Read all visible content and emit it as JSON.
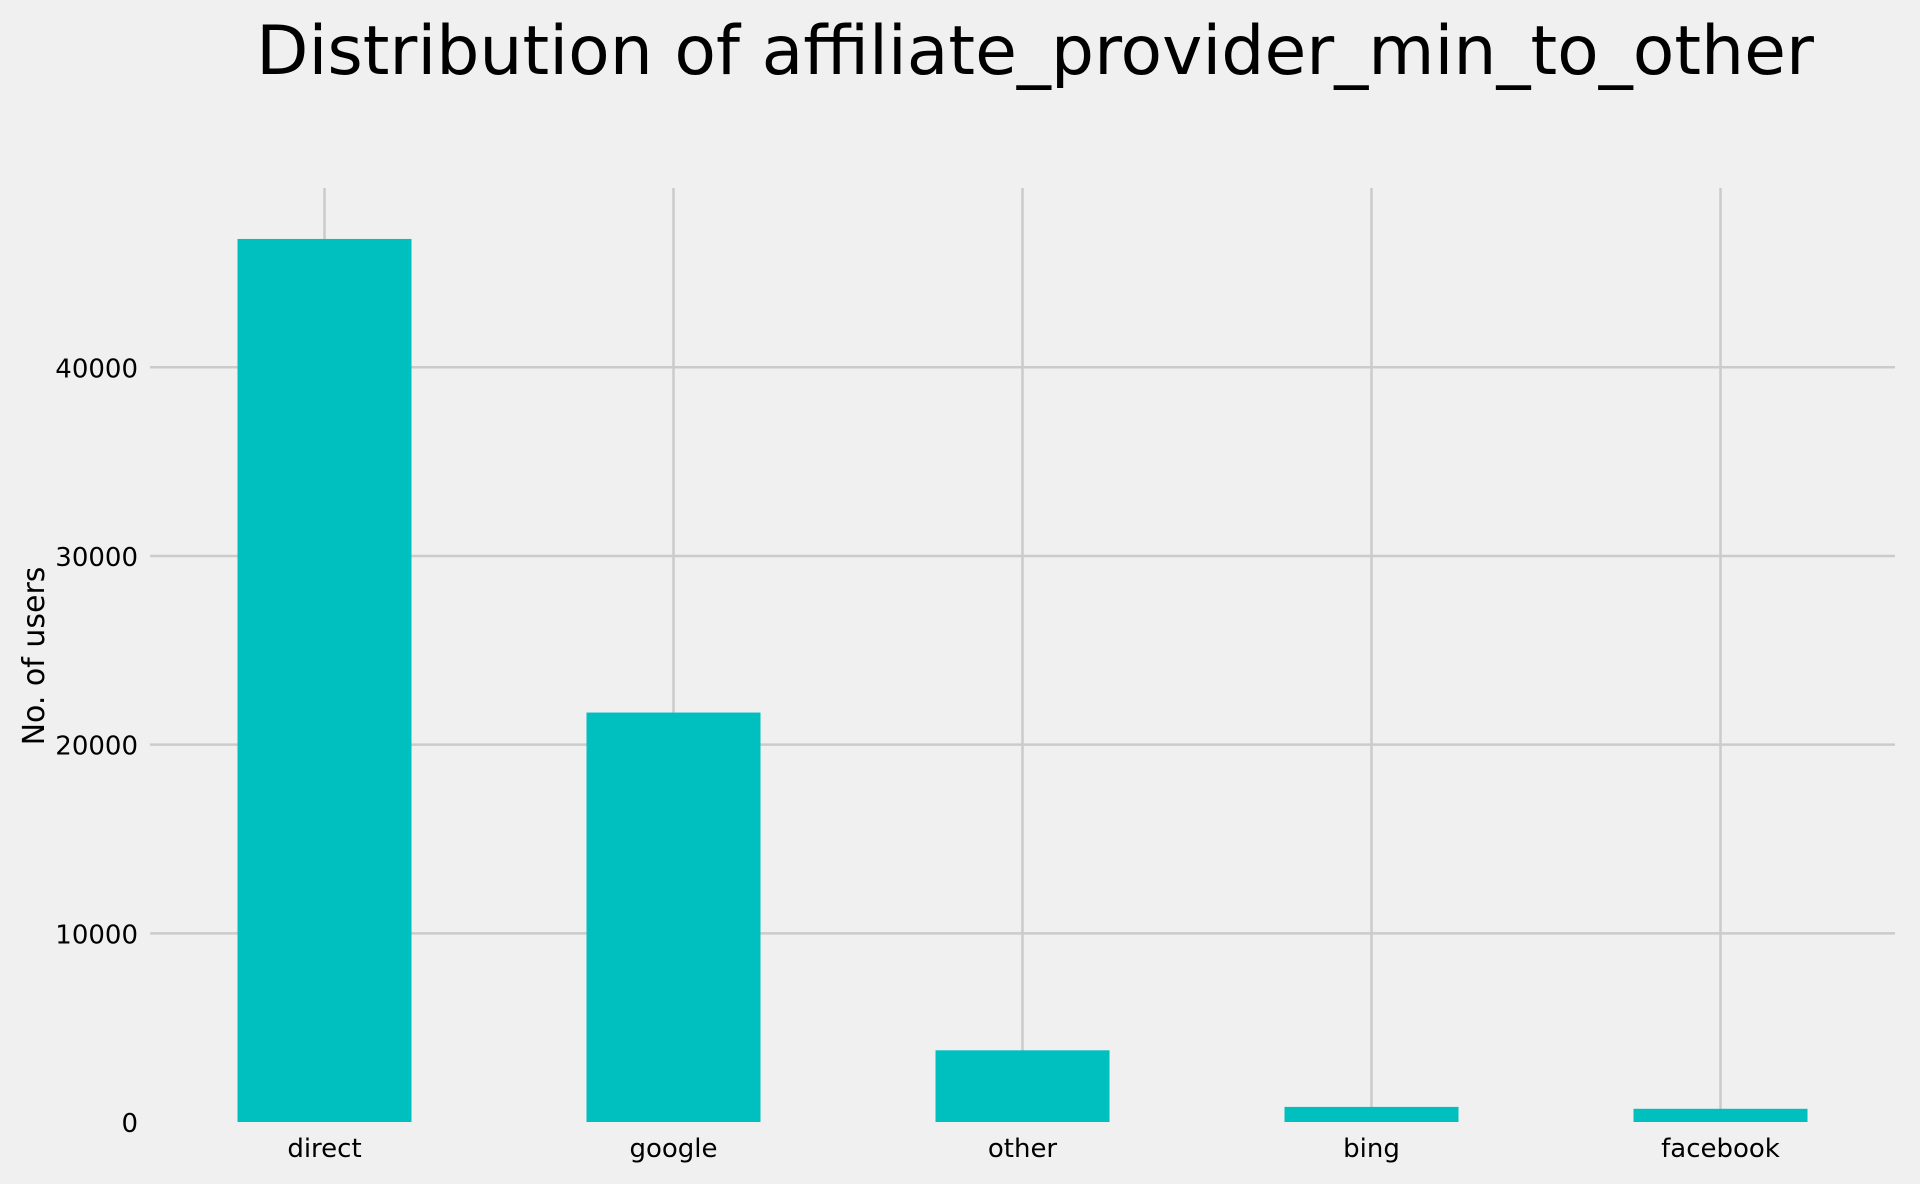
{
  "chart_data": {
    "type": "bar",
    "title": "Distribution of affiliate_provider_min_to_other",
    "xlabel": "",
    "ylabel": "No. of users",
    "categories": [
      "direct",
      "google",
      "other",
      "bing",
      "facebook"
    ],
    "values": [
      46800,
      21700,
      3800,
      800,
      700
    ],
    "yticks": [
      0,
      10000,
      20000,
      30000,
      40000
    ],
    "ylim": [
      0,
      49500
    ],
    "grid": true,
    "bar_color": "#00bfbf",
    "background_color": "#f0f0f0",
    "grid_color": "#cbcbcb"
  }
}
